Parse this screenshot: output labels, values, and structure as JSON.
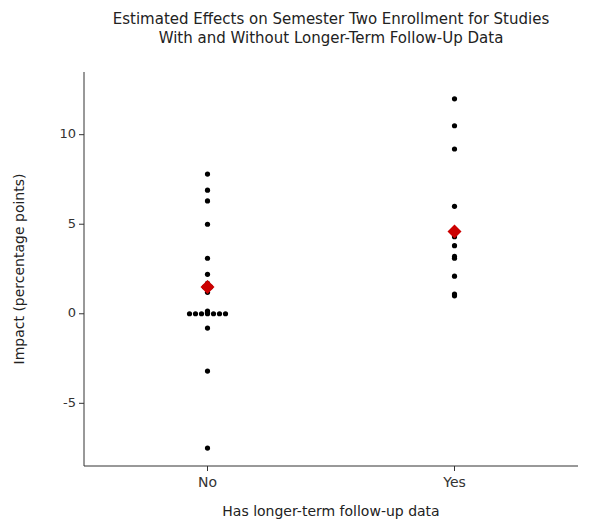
{
  "chart_data": {
    "type": "strip",
    "title": "Estimated Effects on Semester Two Enrollment for Studies\nWith and Without Longer-Term Follow-Up Data",
    "x_label": "Has longer-term follow-up data",
    "y_label": "Impact (percentage points)",
    "categories": [
      "No",
      "Yes"
    ],
    "ylim": [
      -8.5,
      13.5
    ],
    "yticks": [
      -5,
      0,
      5,
      10
    ],
    "grid": false,
    "series": [
      {
        "type": "strip",
        "color": "#000000",
        "marker": "circle",
        "values": [
          [
            7.8,
            6.9,
            6.3,
            5.0,
            3.1,
            2.2,
            1.7,
            1.6,
            1.5,
            1.5,
            1.4,
            1.3,
            1.2,
            0.15,
            0.1,
            0.05,
            0.0,
            0.0,
            0.0,
            0.0,
            0.0,
            0.0,
            0.0,
            -0.8,
            -3.2,
            -7.5
          ],
          [
            12.0,
            10.5,
            9.2,
            6.0,
            4.3,
            3.8,
            3.2,
            3.1,
            2.1,
            1.1,
            1.0
          ]
        ]
      },
      {
        "type": "point",
        "color": "#cc0000",
        "marker": "diamond",
        "values": [
          1.5,
          4.6
        ]
      }
    ]
  }
}
